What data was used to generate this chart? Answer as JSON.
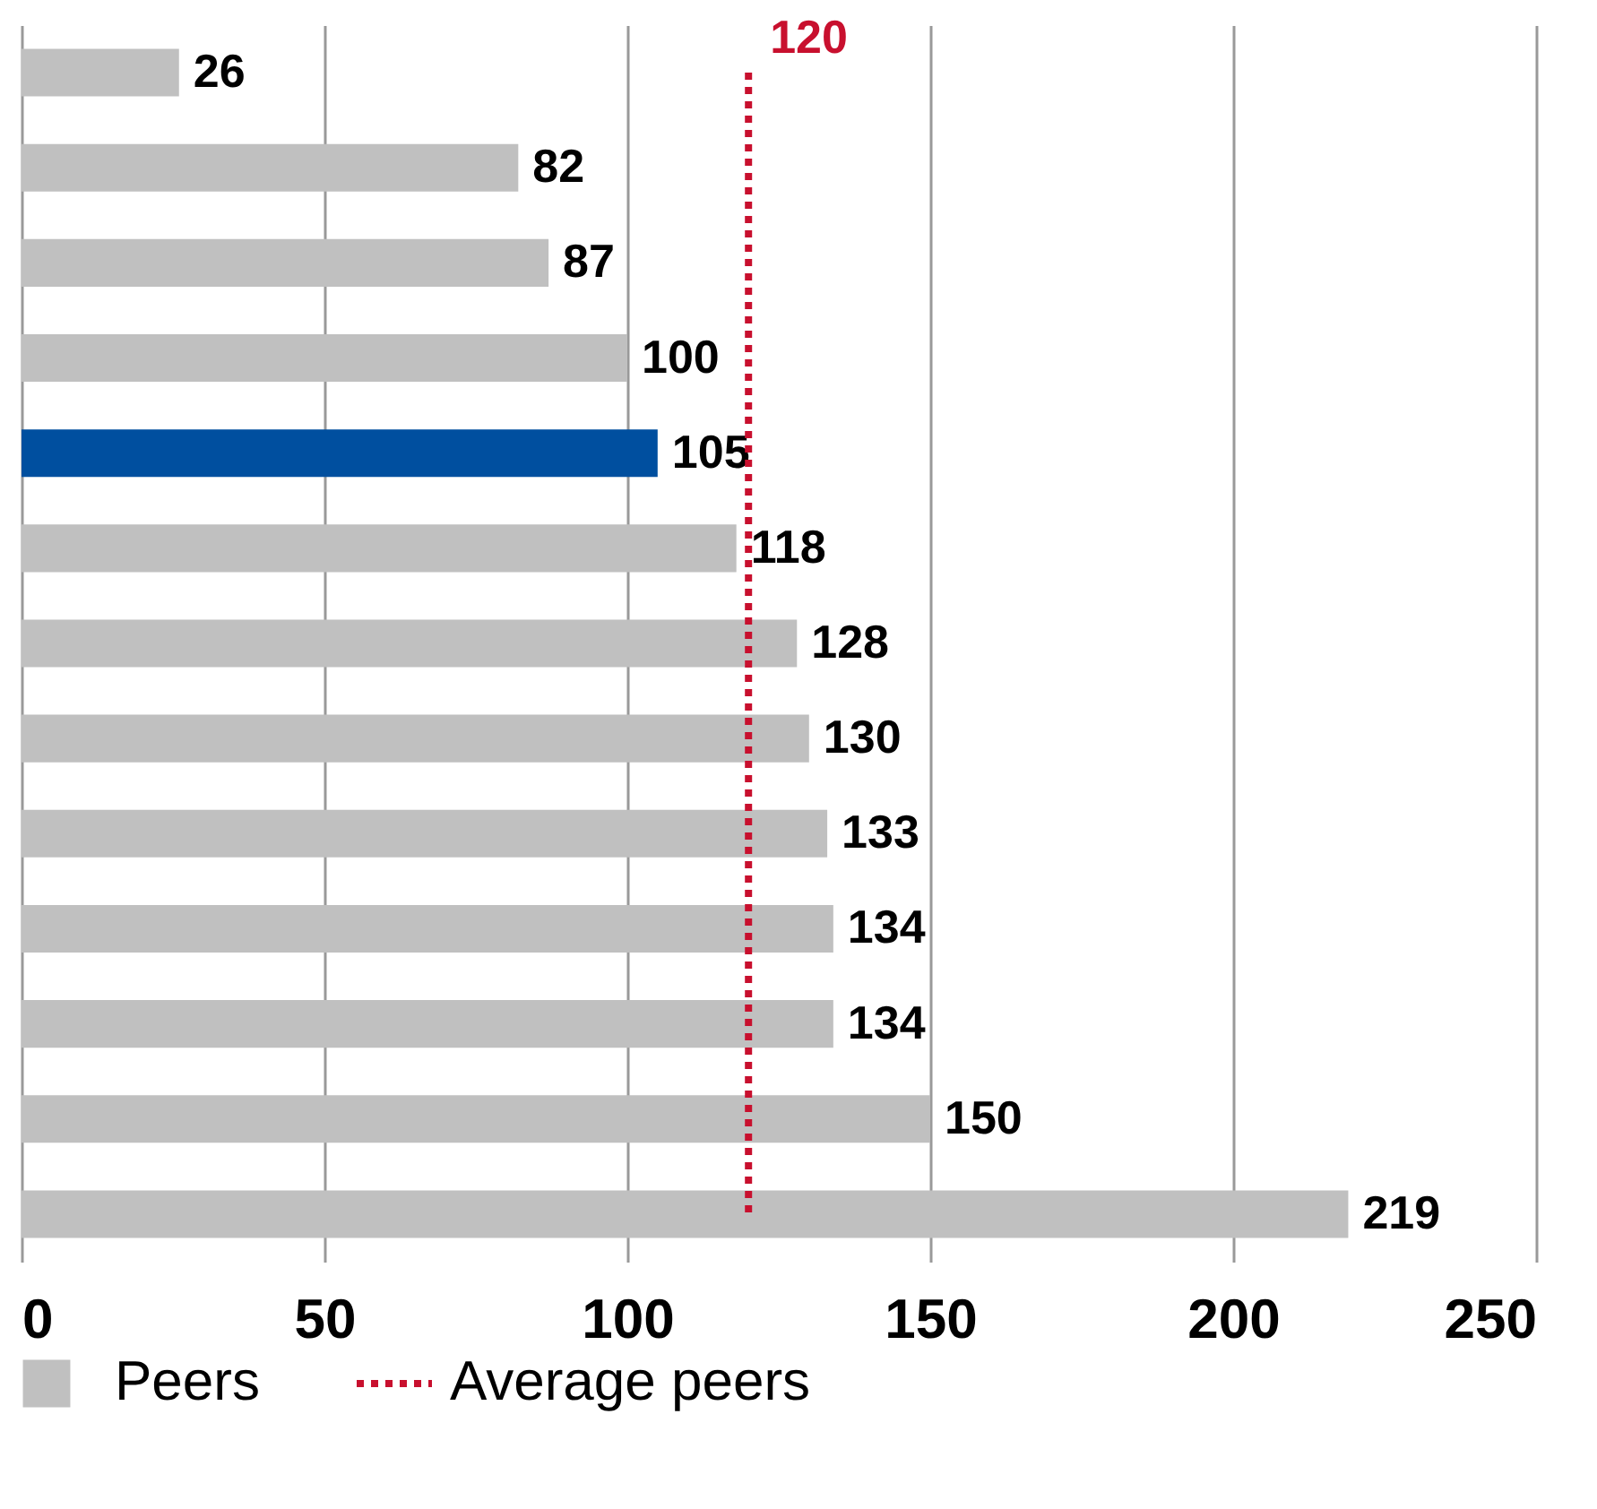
{
  "chart_data": {
    "type": "bar",
    "orientation": "horizontal",
    "categories": [
      null,
      null,
      null,
      null,
      null,
      null,
      null,
      null,
      null,
      null,
      null,
      null,
      null
    ],
    "series": [
      {
        "color": "#004f9f",
        "values": [
          null,
          null,
          null,
          null,
          105,
          null,
          null,
          null,
          null,
          null,
          null,
          null,
          null
        ]
      },
      {
        "name": "Peers",
        "color": "#c0c0c0",
        "values": [
          26,
          82,
          87,
          100,
          null,
          118,
          128,
          130,
          133,
          134,
          134,
          150,
          219
        ]
      },
      {
        "name": "Average peers",
        "type": "line",
        "color": "#c8102e",
        "line_style": "dotted",
        "values": [
          120,
          120,
          120,
          120,
          120,
          120,
          120,
          120,
          120,
          120,
          120,
          120,
          120
        ],
        "value_labels": [
          "120",
          null,
          null,
          null,
          null,
          null,
          null,
          null,
          null,
          null,
          null,
          null,
          null
        ]
      }
    ],
    "xlim": [
      0,
      250
    ],
    "xticks": [
      0,
      50,
      100,
      150,
      200,
      250
    ],
    "grid": "x",
    "data_labels": true,
    "legend": "bottom"
  }
}
